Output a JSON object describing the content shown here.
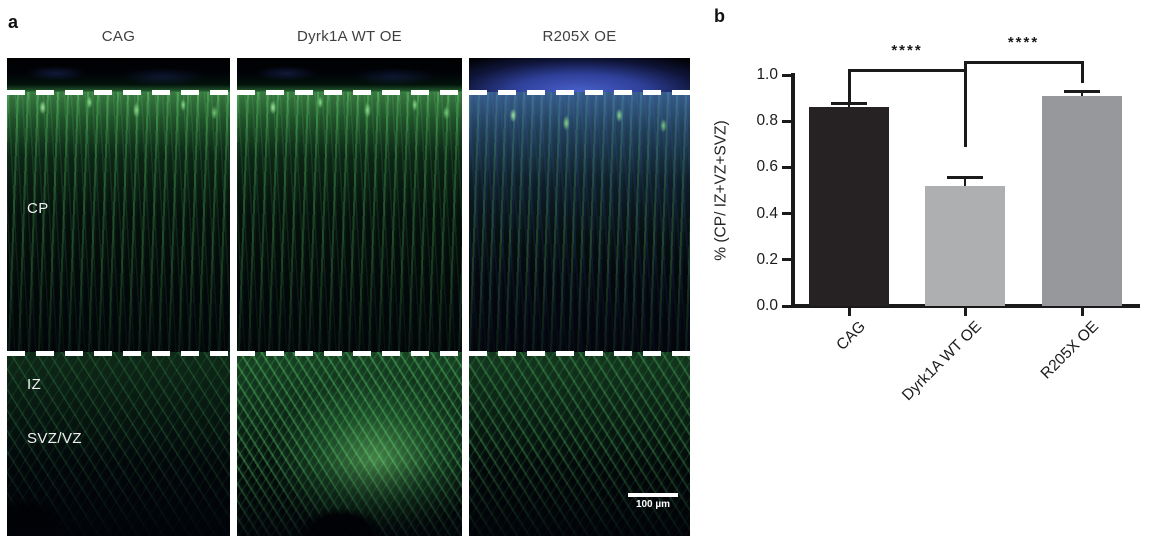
{
  "panel_a": {
    "label": "a",
    "column_titles": [
      "CAG",
      "Dyrk1A WT OE",
      "R205X OE"
    ],
    "region_labels": {
      "cp": "CP",
      "iz": "IZ",
      "svz": "SVZ/VZ"
    },
    "scale_bar_label": "100 µm"
  },
  "panel_b": {
    "label": "b"
  },
  "chart_data": {
    "type": "bar",
    "title": "",
    "categories": [
      "CAG",
      "Dyrk1A WT OE",
      "R205X OE"
    ],
    "values": [
      0.86,
      0.52,
      0.91
    ],
    "errors": [
      0.02,
      0.04,
      0.02
    ],
    "bar_colors": [
      "#262223",
      "#aeafb1",
      "#97989b"
    ],
    "ylabel": "% (CP/ IZ+VZ+SVZ)",
    "xlabel": "",
    "ylim": [
      0,
      1.0
    ],
    "yticks": [
      "0.0",
      "0.2",
      "0.4",
      "0.6",
      "0.8",
      "1.0"
    ],
    "grid": false,
    "legend": "none",
    "significance": [
      {
        "groups": [
          "CAG",
          "Dyrk1A WT OE"
        ],
        "label": "****"
      },
      {
        "groups": [
          "Dyrk1A WT OE",
          "R205X OE"
        ],
        "label": "****"
      }
    ]
  }
}
